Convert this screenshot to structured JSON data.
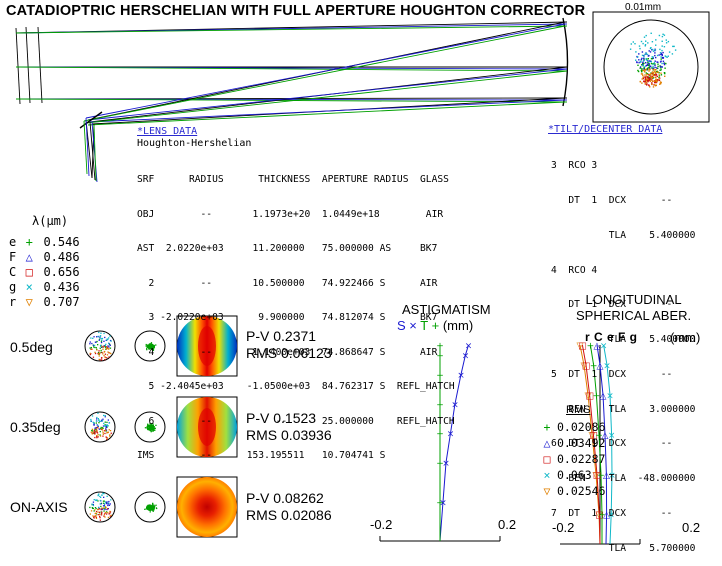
{
  "title": "CATADIOPTRIC HERSCHELIAN WITH FULL APERTURE HOUGHTON CORRECTOR",
  "spot_scale": "0.01mm",
  "lens_data": {
    "heading": "*LENS DATA",
    "name": "Houghton-Hershelian",
    "header": "SRF      RADIUS      THICKNESS  APERTURE RADIUS  GLASS",
    "rows": [
      "OBJ        --       1.1973e+20  1.0449e+18        AIR",
      "",
      "AST  2.0220e+03     11.200000   75.000000 AS     BK7",
      "  2        --       10.500000   74.922466 S      AIR",
      "  3 -2.0220e+03      9.900000   74.812074 S      BK7",
      "  4        --       1.1400e+03  74.868647 S      AIR",
      "  5 -2.4045e+03    -1.0500e+03  84.762317 S  REFL_HATCH",
      "  6        --           --      25.000000    REFL_HATCH",
      "IMS        --      153.195511   10.704741 S"
    ]
  },
  "tilt_data": {
    "heading": "*TILT/DECENTER DATA",
    "rows": [
      "3  RCO 3",
      "   DT  1  DCX      --",
      "          TLA    5.400000",
      "4  RCO 4",
      "   DT  1  DCX      --",
      "          TLA    5.400000",
      "5  DT  1  DCX      --",
      "   BEN    TLA    3.000000",
      "6  DT  1  DCX      --",
      "   BEN    TLA  -48.000000",
      "7  DT  1  DCX      --",
      "          TLA    5.700000"
    ]
  },
  "wavelengths": {
    "header": "λ(μm)",
    "items": [
      {
        "letter": "e",
        "symbol": "+",
        "value": "0.546",
        "color": "#00a000"
      },
      {
        "letter": "F",
        "symbol": "△",
        "value": "0.486",
        "color": "#1a1ad0"
      },
      {
        "letter": "C",
        "symbol": "□",
        "value": "0.656",
        "color": "#d01010"
      },
      {
        "letter": "g",
        "symbol": "×",
        "value": "0.436",
        "color": "#10b8c8"
      },
      {
        "letter": "r",
        "symbol": "▽",
        "value": "0.707",
        "color": "#e08000"
      }
    ]
  },
  "fields": [
    {
      "label": "0.5deg",
      "pv": "P-V 0.2371",
      "rms": "RMS 0.06123"
    },
    {
      "label": "0.35deg",
      "pv": "P-V 0.1523",
      "rms": "RMS 0.03936"
    },
    {
      "label": "ON-AXIS",
      "pv": "P-V 0.08262",
      "rms": "RMS 0.02086"
    }
  ],
  "astigmatism": {
    "title": "ASTIGMATISM",
    "legend_s": "S",
    "legend_x": "×",
    "legend_t": "T",
    "legend_plus": "+",
    "units": "(mm)",
    "xmin_label": "-0.2",
    "xmax_label": "0.2"
  },
  "longitudinal": {
    "title_line1": "LONGITUDINAL",
    "title_line2": "SPHERICAL ABER.",
    "letters": "r C e F g",
    "units": "(mm)",
    "xmin_label": "-0.2",
    "xmax_label": "0.2",
    "rms_header": "RMS",
    "rms": [
      {
        "symbol": "+",
        "value": "0.02086",
        "color": "#00a000"
      },
      {
        "symbol": "△",
        "value": "0.03492",
        "color": "#1a1ad0"
      },
      {
        "symbol": "□",
        "value": "0.02287",
        "color": "#d01010"
      },
      {
        "symbol": "×",
        "value": "0.063",
        "color": "#10b8c8"
      },
      {
        "symbol": "▽",
        "value": "0.02546",
        "color": "#e08000"
      }
    ]
  },
  "chart_data": [
    {
      "type": "line",
      "title": "ASTIGMATISM",
      "xlabel": "(mm)",
      "xlim": [
        -0.2,
        0.2
      ],
      "series": [
        {
          "name": "S",
          "color": "#1a1ad0",
          "x": [
            0.0,
            0.01,
            0.02,
            0.035,
            0.05,
            0.07,
            0.085,
            0.095
          ],
          "y": [
            0.0,
            0.2,
            0.4,
            0.55,
            0.7,
            0.85,
            0.95,
            1.0
          ]
        },
        {
          "name": "T",
          "color": "#00a000",
          "x": [
            0.0,
            0.0,
            0.0,
            0.0,
            0.0,
            0.0,
            0.0,
            0.0
          ],
          "y": [
            0.0,
            0.2,
            0.4,
            0.55,
            0.7,
            0.85,
            0.95,
            1.0
          ]
        }
      ]
    },
    {
      "type": "line",
      "title": "LONGITUDINAL SPHERICAL ABER.",
      "xlabel": "(mm)",
      "xlim": [
        -0.2,
        0.2
      ],
      "series": [
        {
          "name": "r 0.707",
          "color": "#e08000",
          "x": [
            0.0,
            -0.005,
            -0.02,
            -0.04,
            -0.06,
            -0.08,
            -0.1
          ],
          "y": [
            0.0,
            0.15,
            0.35,
            0.55,
            0.75,
            0.9,
            1.0
          ]
        },
        {
          "name": "C 0.656",
          "color": "#d01010",
          "x": [
            0.0,
            -0.003,
            -0.015,
            -0.033,
            -0.052,
            -0.07,
            -0.088
          ],
          "y": [
            0.0,
            0.15,
            0.35,
            0.55,
            0.75,
            0.9,
            1.0
          ]
        },
        {
          "name": "e 0.546",
          "color": "#00a000",
          "x": [
            0.01,
            0.01,
            0.005,
            -0.005,
            -0.018,
            -0.032,
            -0.048
          ],
          "y": [
            0.0,
            0.15,
            0.35,
            0.55,
            0.75,
            0.9,
            1.0
          ]
        },
        {
          "name": "F 0.486",
          "color": "#1a1ad0",
          "x": [
            0.03,
            0.033,
            0.032,
            0.025,
            0.015,
            0.0,
            -0.015
          ],
          "y": [
            0.0,
            0.15,
            0.35,
            0.55,
            0.75,
            0.9,
            1.0
          ]
        },
        {
          "name": "g 0.436",
          "color": "#10b8c8",
          "x": [
            0.05,
            0.056,
            0.06,
            0.058,
            0.05,
            0.035,
            0.018
          ],
          "y": [
            0.0,
            0.15,
            0.35,
            0.55,
            0.75,
            0.9,
            1.0
          ]
        }
      ]
    }
  ]
}
